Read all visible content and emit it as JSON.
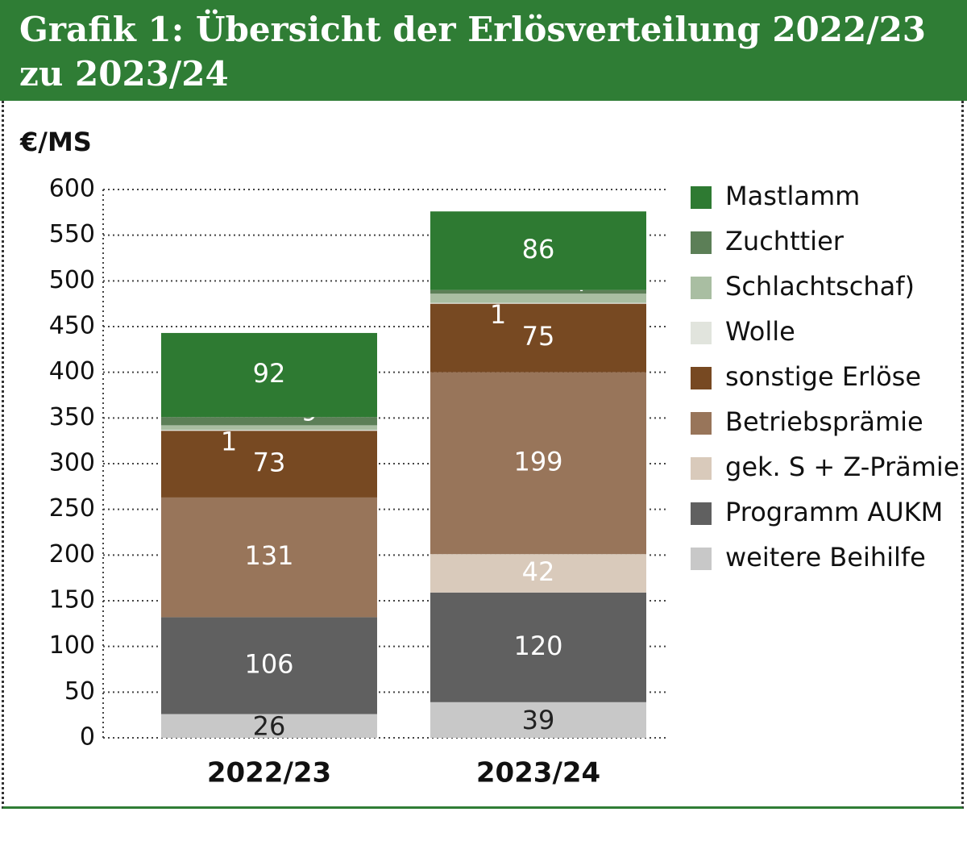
{
  "chart_data": {
    "type": "stacked-bar",
    "title": [
      "Grafik 1: Übersicht der Erlösverteilung 2022/23",
      "zu 2023/24"
    ],
    "y_label": "€/MS",
    "categories": [
      "2022/23",
      "2023/24"
    ],
    "series": [
      {
        "name": "Mastlamm",
        "color": "#2e7a32",
        "values": [
          92,
          86
        ]
      },
      {
        "name": "Zuchttier",
        "color": "#5c7f57",
        "values": [
          9,
          4
        ]
      },
      {
        "name": "Schlachtschaf)",
        "color": "#a9bea2",
        "values": [
          5,
          10
        ]
      },
      {
        "name": "Wolle",
        "color": "#e1e4dd",
        "values": [
          1,
          1
        ]
      },
      {
        "name": "sonstige Erlöse",
        "color": "#774922",
        "values": [
          73,
          75
        ]
      },
      {
        "name": "Betriebsprämie",
        "color": "#98755a",
        "values": [
          131,
          199
        ]
      },
      {
        "name": "gek. S + Z-Prämie",
        "color": "#d9cabb",
        "values": [
          null,
          42
        ]
      },
      {
        "name": "Programm AUKM",
        "color": "#606060",
        "values": [
          106,
          120
        ]
      },
      {
        "name": "weitere Beihilfe",
        "color": "#c8c8c8",
        "values": [
          26,
          39
        ]
      }
    ],
    "ylim": [
      0,
      600
    ],
    "yticks": [
      0,
      50,
      100,
      150,
      200,
      250,
      300,
      350,
      400,
      450,
      500,
      550,
      600
    ],
    "grid": true
  }
}
